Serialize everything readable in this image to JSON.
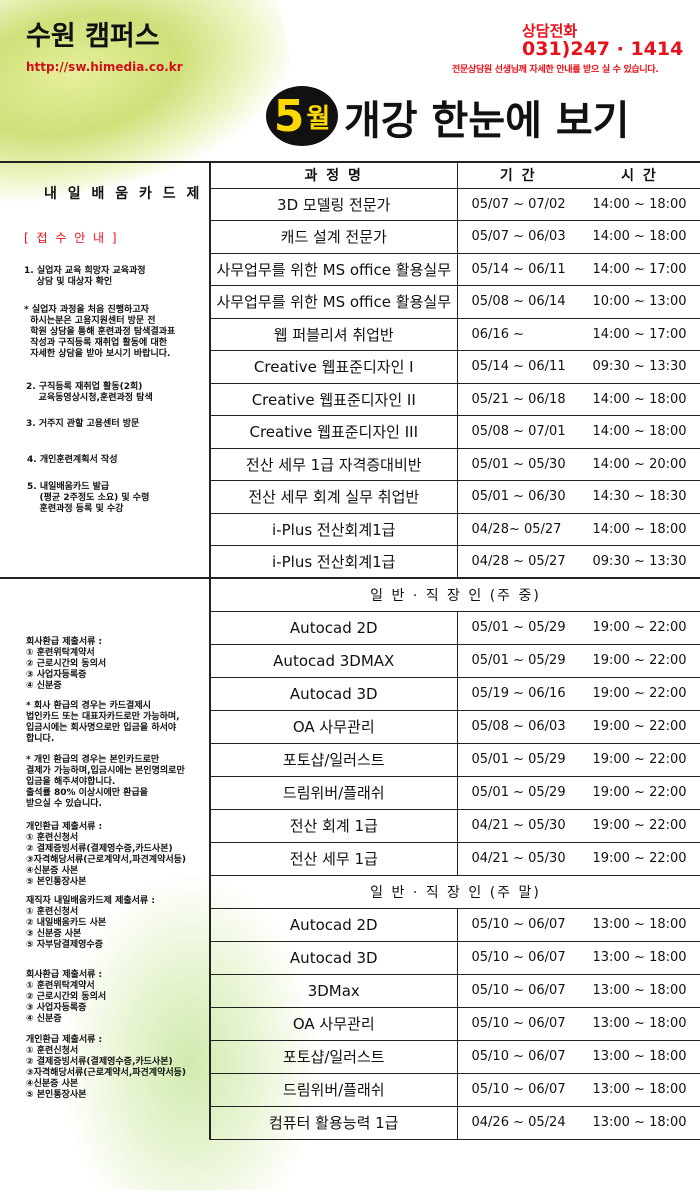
{
  "header": {
    "brand": "수원 캠퍼스",
    "url": "http://sw.himedia.co.kr",
    "phone_label": "상담전화",
    "phone": "031)247 · 1414",
    "phone_note": "전문상담원 선생님께 자세한 안내를 받으 실 수 있습니다.",
    "badge_number": "5",
    "badge_month": "월",
    "headline": "개강 한눈에 보기"
  },
  "sidebar": {
    "card_title": "내 일 배 움 카 드 제",
    "notice": "[ 접 수 안 내 ]",
    "steps": [
      "1. 실업자 교육 희망자 교육과정\n    상담 및 대상자 확인",
      "* 실업자 과정을 처음 진행하고자\n  하시는분은 고용지원센터 방문 전\n  학원 상담을 통해 훈련과정 탐색결과표\n  작성과 구직등록 재취업 활동에 대한\n  자세한 상담을 받아 보시기 바랍니다.",
      "2. 구직등록 재취업 활동(2회)\n    교육동영상시청,훈련과정 탐색",
      "3. 거주지 관할 고용센터 방문",
      "4. 개인훈련계획서 작성",
      "5. 내일배움카드 발급\n    (평균 2주정도 소요) 및 수령\n    훈련과정 등록 및 수강"
    ],
    "docs": [
      "회사환급 제출서류 :\n① 훈련위탁계약서\n② 근로시간외 동의서\n③ 사업자등록증\n④ 신분증",
      "* 회사 환급의 경우는 카드결제시\n법인카드 또는 대표자카드로만 가능하며,\n입금시에는 회사명으로만 입금을 하서야\n합니다.",
      "* 개인 환급의 경우는 본인카드로만\n결제가 가능하며,입금시에는 본인명의로만\n입금을 해주셔야합니다.\n출석률 80% 이상시에만 환급을\n받으실 수 있습니다.",
      "개인환급 제출서류 :\n① 훈련신청서\n② 결제증빙서류(결제영수증,카드사본)\n③자격해당서류(근로계약서,파견계약서등)\n④신분증 사본\n⑤ 본인통장사본",
      "재직자 내일배움카드제 제출서류 :\n① 훈련신청서\n② 내일배움카드 사본\n③ 신분증 사본\n⑤ 자부담결제영수증",
      "회사환급 제출서류 :\n① 훈련위탁계약서\n② 근로시간외 동의서\n③ 사업자등록증\n④ 신분증",
      "개인환급 제출서류 :\n① 훈련신청서\n② 결제증빙서류(결제영수증,카드사본)\n③자격해당서류(근로계약서,파견계약서등)\n④신분증 사본\n⑤ 본인통장사본"
    ]
  },
  "table": {
    "headers": [
      "과 정 명",
      "기 간",
      "시 간"
    ],
    "section1": [
      [
        "3D 모델링 전문가",
        "05/07 ~ 07/02",
        "14:00 ~ 18:00"
      ],
      [
        "캐드 설계 전문가",
        "05/07 ~ 06/03",
        "14:00 ~ 18:00"
      ],
      [
        "사무업무를 위한 MS office 활용실무",
        "05/14 ~ 06/11",
        "14:00 ~ 17:00"
      ],
      [
        "사무업무를 위한 MS office 활용실무",
        "05/08 ~ 06/14",
        "10:00 ~ 13:00"
      ],
      [
        "웹 퍼블리셔 취업반",
        "06/16 ~",
        "14:00 ~ 17:00"
      ],
      [
        "Creative 웹표준디자인 I",
        "05/14 ~ 06/11",
        "09:30 ~ 13:30"
      ],
      [
        "Creative 웹표준디자인 II",
        "05/21 ~ 06/18",
        "14:00 ~ 18:00"
      ],
      [
        "Creative 웹표준디자인 III",
        "05/08 ~ 07/01",
        "14:00 ~ 18:00"
      ],
      [
        "전산 세무 1급 자격증대비반",
        "05/01 ~ 05/30",
        "14:00 ~ 20:00"
      ],
      [
        "전산 세무 회계 실무 취업반",
        "05/01 ~ 06/30",
        "14:30 ~ 18:30"
      ],
      [
        "i-Plus 전산회계1급",
        "04/28~ 05/27",
        "14:00 ~ 18:00"
      ],
      [
        "i-Plus 전산회계1급",
        "04/28 ~ 05/27",
        "09:30 ~ 13:30"
      ]
    ],
    "weekday_title": "일 반 · 직 장 인  (주 중)",
    "weekday": [
      [
        "Autocad 2D",
        "05/01 ~ 05/29",
        "19:00 ~ 22:00"
      ],
      [
        "Autocad 3DMAX",
        "05/01 ~ 05/29",
        "19:00 ~ 22:00"
      ],
      [
        "Autocad 3D",
        "05/19 ~ 06/16",
        "19:00 ~ 22:00"
      ],
      [
        "OA 사무관리",
        "05/08 ~ 06/03",
        "19:00 ~ 22:00"
      ],
      [
        "포토샵/일러스트",
        "05/01 ~ 05/29",
        "19:00 ~ 22:00"
      ],
      [
        "드림위버/플래쉬",
        "05/01 ~ 05/29",
        "19:00 ~ 22:00"
      ],
      [
        "전산 회계 1급",
        "04/21 ~ 05/30",
        "19:00 ~ 22:00"
      ],
      [
        "전산 세무 1급",
        "04/21 ~ 05/30",
        "19:00 ~ 22:00"
      ]
    ],
    "weekend_title": "일 반 · 직 장 인  (주 말)",
    "weekend": [
      [
        "Autocad 2D",
        "05/10 ~ 06/07",
        "13:00 ~ 18:00"
      ],
      [
        "Autocad 3D",
        "05/10 ~ 06/07",
        "13:00 ~ 18:00"
      ],
      [
        "3DMax",
        "05/10 ~ 06/07",
        "13:00 ~ 18:00"
      ],
      [
        "OA 사무관리",
        "05/10 ~ 06/07",
        "13:00 ~ 18:00"
      ],
      [
        "포토샵/일러스트",
        "05/10 ~ 06/07",
        "13:00 ~ 18:00"
      ],
      [
        "드림위버/플래쉬",
        "05/10 ~ 06/07",
        "13:00 ~ 18:00"
      ],
      [
        "컴퓨터 활용능력 1급",
        "04/26 ~ 05/24",
        "13:00 ~ 18:00"
      ]
    ]
  }
}
